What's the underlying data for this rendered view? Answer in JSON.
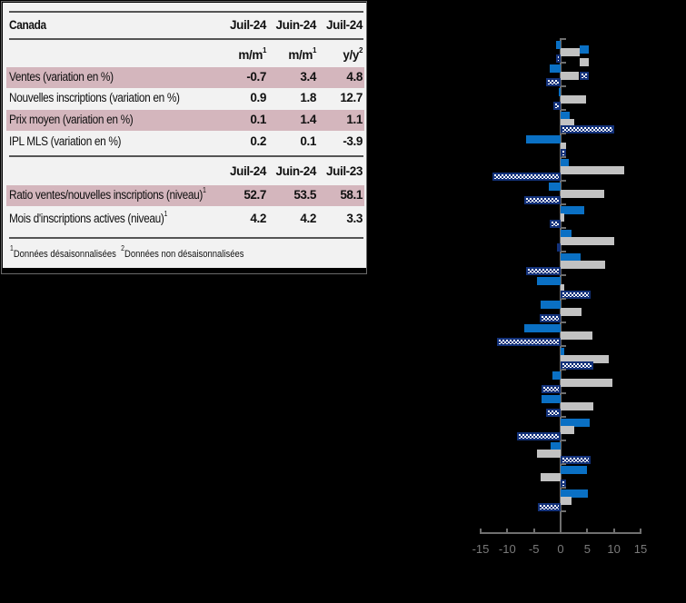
{
  "table": {
    "region": "Canada",
    "columns_top": [
      "Juil-24",
      "Juin-24",
      "Juil-24"
    ],
    "units": [
      {
        "text": "m/m",
        "sup": "1"
      },
      {
        "text": "m/m",
        "sup": "1"
      },
      {
        "text": "y/y",
        "sup": "2"
      }
    ],
    "rows_top": [
      {
        "label": "Ventes (variation en %)",
        "values": [
          "-0.7",
          "3.4",
          "4.8"
        ],
        "shaded": true
      },
      {
        "label": "Nouvelles inscriptions (variation en %)",
        "values": [
          "0.9",
          "1.8",
          "12.7"
        ],
        "shaded": false
      },
      {
        "label": "Prix moyen (variation en %)",
        "values": [
          "0.1",
          "1.4",
          "1.1"
        ],
        "shaded": true
      },
      {
        "label": "IPL MLS (variation en %)",
        "values": [
          "0.2",
          "0.1",
          "-3.9"
        ],
        "shaded": false
      }
    ],
    "columns_bottom": [
      "Juil-24",
      "Juin-24",
      "Juil-23"
    ],
    "rows_bottom": [
      {
        "label": "Ratio ventes/nouvelles inscriptions (niveau)",
        "sup": "1",
        "values": [
          "52.7",
          "53.5",
          "58.1"
        ],
        "shaded": true
      },
      {
        "label": "Mois d'inscriptions actives (niveau)",
        "sup": "1",
        "values": [
          "4.2",
          "4.2",
          "3.3"
        ],
        "shaded": false
      }
    ],
    "footnotes": [
      {
        "sup": "1",
        "text": "Données désaisonnalisées"
      },
      {
        "sup": "2",
        "text": "Données non désaisonnalisées"
      }
    ],
    "colors": {
      "panel_bg": "#f2f2f2",
      "shaded_row": "#d4b6bd"
    }
  },
  "chart_data": {
    "type": "bar",
    "orientation": "horizontal",
    "title": "",
    "xlabel": "",
    "ylabel": "",
    "xlim": [
      -15,
      15
    ],
    "x_ticks": [
      "-15",
      "-10",
      "-5",
      "0",
      "5",
      "10",
      "15"
    ],
    "categories": [
      "1",
      "2",
      "3",
      "4",
      "5",
      "6",
      "7",
      "8",
      "9",
      "10",
      "11",
      "12",
      "13",
      "14",
      "15",
      "16",
      "17",
      "18",
      "19",
      "20"
    ],
    "category_labels_visible": false,
    "legend": {
      "position": "top-right",
      "entries_text_visible": false
    },
    "series": [
      {
        "name": "Series 1 (blue)",
        "color": "#0a70c4",
        "style": "solid",
        "values": [
          -0.8,
          -2.1,
          -0.3,
          1.7,
          -6.4,
          1.6,
          -2.2,
          4.4,
          2.0,
          3.7,
          -4.5,
          -3.7,
          -6.9,
          0.6,
          -1.6,
          -3.5,
          5.5,
          -1.9,
          5.0,
          5.1
        ]
      },
      {
        "name": "Series 2 (grey)",
        "color": "#c2c2c2",
        "style": "solid",
        "values": [
          3.6,
          3.4,
          4.8,
          2.6,
          1.1,
          11.9,
          8.1,
          0.7,
          10.1,
          8.4,
          0.6,
          3.9,
          6.0,
          9.1,
          9.8,
          6.2,
          2.5,
          -4.4,
          -3.7,
          2.1
        ]
      },
      {
        "name": "Series 3 (hatched)",
        "color": "#13327a",
        "style": "checkered",
        "values": [
          -0.9,
          -2.8,
          -1.4,
          10.1,
          1.1,
          -12.8,
          -6.9,
          -2.0,
          -0.6,
          -6.4,
          5.7,
          -4.0,
          -12.0,
          6.1,
          -3.6,
          -2.7,
          -8.2,
          5.7,
          1.1,
          -4.3
        ]
      }
    ]
  }
}
